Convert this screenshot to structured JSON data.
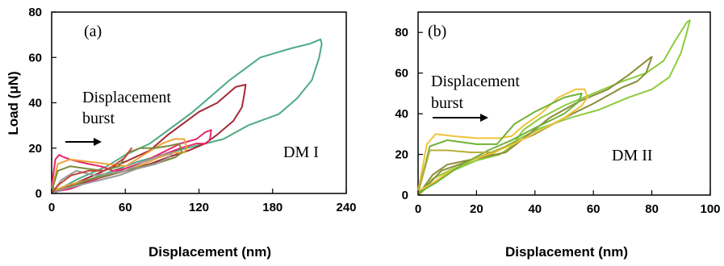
{
  "chart_data": [
    {
      "type": "line",
      "panel_label": "(a)",
      "xlabel": "Displacement (nm)",
      "ylabel": "Load (μN)",
      "xlim": [
        0,
        240
      ],
      "ylim": [
        0,
        80
      ],
      "xticks": [
        0,
        60,
        120,
        180,
        240
      ],
      "yticks": [
        0,
        20,
        40,
        60,
        80
      ],
      "annotations": {
        "burst": [
          "Displacement",
          "burst"
        ],
        "sample": "DM I"
      },
      "grid": false,
      "series": [
        {
          "color": "#4daa84",
          "x": [
            0,
            20,
            45,
            60,
            80,
            95,
            115,
            145,
            170,
            195,
            210,
            219,
            220,
            218,
            212,
            200,
            185,
            160,
            140,
            125,
            110,
            90,
            70,
            50,
            30,
            12,
            2
          ],
          "y": [
            0,
            6,
            12,
            17,
            22,
            28,
            36,
            50,
            60,
            64,
            66,
            68,
            66,
            60,
            50,
            42,
            35,
            30,
            24,
            22,
            20,
            17,
            14,
            10,
            6,
            3,
            0
          ]
        },
        {
          "color": "#a22a36",
          "x": [
            0,
            30,
            60,
            80,
            95,
            120,
            135,
            150,
            158,
            157,
            155,
            148,
            135,
            125,
            112,
            95,
            80,
            60,
            40,
            20,
            5,
            0
          ],
          "y": [
            0,
            7,
            14,
            19,
            26,
            36,
            40,
            47,
            48,
            44,
            38,
            32,
            26,
            22,
            19,
            16,
            13,
            10,
            7,
            4,
            1,
            0
          ]
        },
        {
          "color": "#e6266c",
          "x": [
            0,
            3,
            6,
            10,
            15,
            22,
            30,
            40,
            50,
            60,
            75,
            90,
            105,
            118,
            125,
            130,
            129,
            126,
            118,
            105,
            90,
            70,
            50,
            30,
            15,
            5,
            0
          ],
          "y": [
            3,
            15,
            17,
            16,
            15,
            14,
            13,
            12,
            10,
            11,
            14,
            18,
            22,
            24,
            27,
            28,
            24,
            22,
            22,
            20,
            17,
            13,
            9,
            5,
            2,
            1,
            3
          ]
        },
        {
          "color": "#f0a33a",
          "x": [
            0,
            5,
            15,
            30,
            45,
            60,
            75,
            90,
            100,
            108,
            110,
            108,
            100,
            88,
            75,
            60,
            45,
            30,
            15,
            5,
            0
          ],
          "y": [
            1,
            13,
            15,
            14,
            13,
            12,
            17,
            22,
            24,
            24,
            20,
            18,
            18,
            16,
            13,
            10,
            8,
            6,
            4,
            2,
            1
          ]
        },
        {
          "color": "#7c8c3a",
          "x": [
            0,
            5,
            15,
            28,
            42,
            55,
            62,
            72,
            84,
            96,
            104,
            106,
            101,
            90,
            75,
            60,
            45,
            30,
            15,
            4,
            0
          ],
          "y": [
            1,
            10,
            12,
            11,
            10,
            12,
            18,
            20,
            20,
            21,
            22,
            18,
            16,
            14,
            12,
            10,
            8,
            6,
            3,
            1,
            1
          ]
        },
        {
          "color": "#9a9a9a",
          "x": [
            0,
            8,
            20,
            35,
            48,
            60,
            75,
            90,
            98,
            96,
            85,
            70,
            55,
            40,
            25,
            10,
            0
          ],
          "y": [
            0,
            6,
            10,
            8,
            9,
            10,
            14,
            17,
            18,
            16,
            13,
            11,
            8,
            6,
            4,
            2,
            0
          ]
        },
        {
          "color": "#c44a3a",
          "x": [
            0,
            6,
            16,
            30,
            42,
            50,
            60,
            65
          ],
          "y": [
            0,
            4,
            8,
            10,
            10,
            12,
            16,
            20
          ]
        }
      ]
    },
    {
      "type": "line",
      "panel_label": "(b)",
      "xlabel": "Displacement (nm)",
      "ylabel": "",
      "xlim": [
        0,
        100
      ],
      "ylim": [
        0,
        90
      ],
      "xticks": [
        0,
        20,
        40,
        60,
        80,
        100
      ],
      "yticks": [
        0,
        20,
        40,
        60,
        80
      ],
      "annotations": {
        "burst": [
          "Displacement",
          "burst"
        ],
        "sample": "DM II"
      },
      "grid": false,
      "series": [
        {
          "color": "#8ccc3c",
          "x": [
            0,
            5,
            12,
            20,
            28,
            32,
            36,
            42,
            50,
            60,
            70,
            78,
            84,
            88,
            92,
            93,
            92,
            90,
            86,
            80,
            72,
            62,
            52,
            42,
            35,
            30,
            25,
            20,
            12,
            5,
            0
          ],
          "y": [
            0,
            8,
            13,
            17,
            20,
            24,
            32,
            38,
            44,
            50,
            56,
            60,
            66,
            76,
            85,
            86,
            80,
            70,
            58,
            52,
            48,
            42,
            38,
            33,
            28,
            24,
            20,
            17,
            12,
            6,
            0
          ]
        },
        {
          "color": "#8a8c38",
          "x": [
            0,
            5,
            10,
            20,
            30,
            38,
            45,
            55,
            65,
            72,
            79,
            80,
            78,
            75,
            70,
            60,
            50,
            40,
            32,
            25,
            18,
            8,
            0
          ],
          "y": [
            0,
            10,
            15,
            18,
            21,
            30,
            38,
            46,
            52,
            59,
            67,
            68,
            60,
            56,
            53,
            45,
            38,
            30,
            25,
            21,
            17,
            12,
            0
          ]
        },
        {
          "color": "#f2c23a",
          "x": [
            0,
            3,
            6,
            12,
            20,
            28,
            32,
            36,
            42,
            48,
            54,
            57,
            58,
            56,
            50,
            42,
            34,
            26,
            18,
            10,
            4,
            0
          ],
          "y": [
            2,
            25,
            30,
            29,
            28,
            28,
            29,
            34,
            40,
            48,
            52,
            52,
            48,
            44,
            38,
            32,
            26,
            21,
            17,
            11,
            5,
            2
          ]
        },
        {
          "color": "#70b238",
          "x": [
            0,
            4,
            10,
            20,
            27,
            30,
            33,
            40,
            50,
            56,
            55,
            50,
            40,
            32,
            24,
            15,
            6,
            0
          ],
          "y": [
            1,
            24,
            27,
            25,
            25,
            30,
            35,
            41,
            48,
            50,
            46,
            40,
            33,
            27,
            22,
            15,
            6,
            1
          ]
        },
        {
          "color": "#b4b03a",
          "x": [
            0,
            4,
            10,
            18,
            25,
            30
          ],
          "y": [
            1,
            22,
            22,
            21,
            21,
            24
          ]
        }
      ]
    }
  ]
}
